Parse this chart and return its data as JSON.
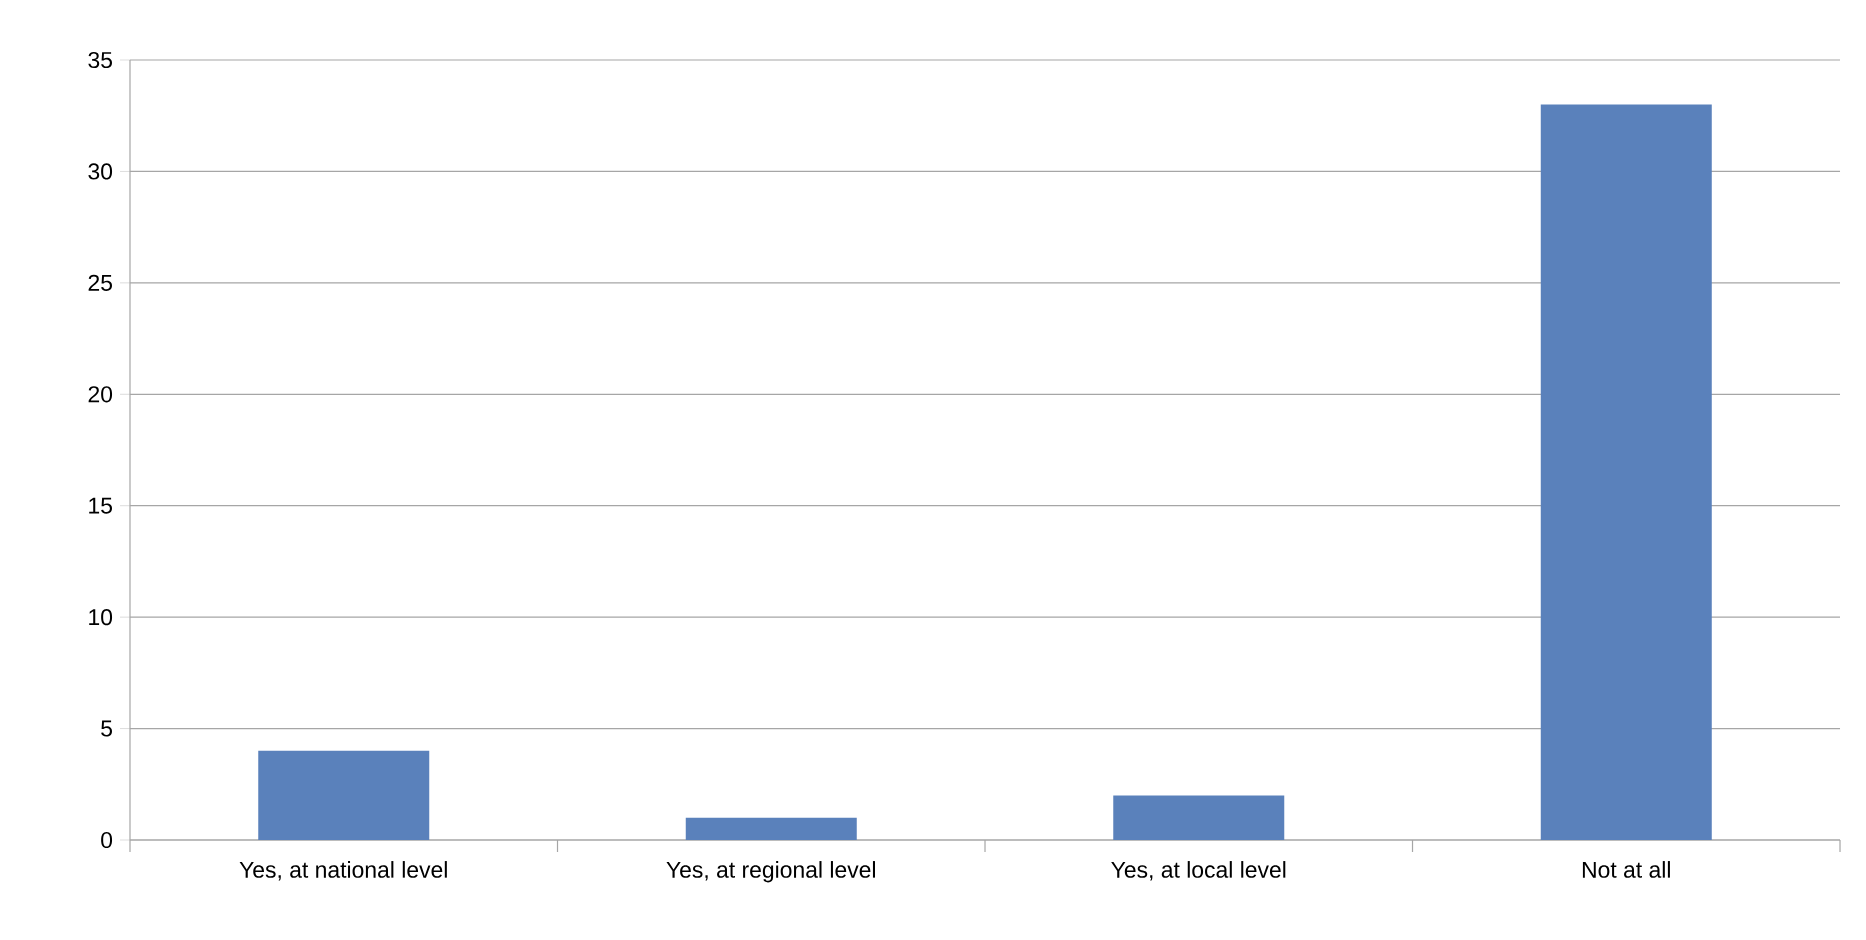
{
  "chart_data": {
    "type": "bar",
    "categories": [
      "Yes, at national level",
      "Yes, at regional level",
      "Yes, at local level",
      "Not at all"
    ],
    "values": [
      4,
      1,
      2,
      33
    ],
    "color": "#5a81bb",
    "ylim": [
      0,
      35
    ],
    "yticks": [
      0,
      5,
      10,
      15,
      20,
      25,
      30,
      35
    ],
    "grid": "y"
  }
}
